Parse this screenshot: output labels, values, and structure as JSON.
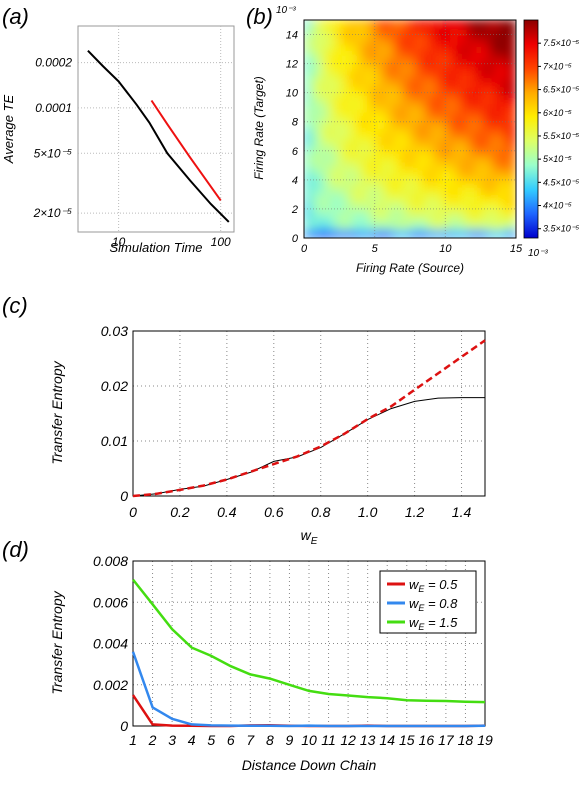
{
  "panels": {
    "a": {
      "letter": "(a)"
    },
    "b": {
      "letter": "(b)"
    },
    "c": {
      "letter": "(c)"
    },
    "d": {
      "letter": "(d)"
    }
  },
  "chart_data": [
    {
      "id": "a",
      "type": "line",
      "xlabel": "Simulation Time",
      "ylabel": "Average TE",
      "xscale": "log",
      "yscale": "log",
      "xlim": [
        4,
        135
      ],
      "ylim": [
        1.5e-05,
        0.00035
      ],
      "xticks": [
        {
          "v": 10,
          "label": "10"
        },
        {
          "v": 100,
          "label": "100"
        }
      ],
      "yticks": [
        {
          "v": 0.0002,
          "label": "0.0002"
        },
        {
          "v": 0.0001,
          "label": "0.0001"
        },
        {
          "v": 5e-05,
          "label": "5×10⁻⁵"
        },
        {
          "v": 2e-05,
          "label": "2×10⁻⁵"
        }
      ],
      "grid": true,
      "series": [
        {
          "color": "#000000",
          "x": [
            5,
            7,
            10,
            15,
            20,
            30,
            50,
            80,
            120
          ],
          "y": [
            0.00024,
            0.00019,
            0.00015,
            0.000105,
            8e-05,
            5e-05,
            3.3e-05,
            2.3e-05,
            1.75e-05
          ]
        },
        {
          "color": "#ee1111",
          "x": [
            21,
            30,
            50,
            100
          ],
          "y": [
            0.000112,
            7.8e-05,
            4.7e-05,
            2.43e-05
          ]
        }
      ]
    },
    {
      "id": "b",
      "type": "heatmap",
      "xlabel": "Firing Rate (Source)",
      "ylabel": "Firing Rate (Target)",
      "xlim": [
        0,
        0.015
      ],
      "ylim": [
        0,
        0.015
      ],
      "xticks": [
        {
          "v": 0,
          "label": "0"
        },
        {
          "v": 0.005,
          "label": "5"
        },
        {
          "v": 0.01,
          "label": "10"
        },
        {
          "v": 0.015,
          "label": "15"
        }
      ],
      "yticks": [
        {
          "v": 0,
          "label": "0"
        },
        {
          "v": 0.002,
          "label": "2"
        },
        {
          "v": 0.004,
          "label": "4"
        },
        {
          "v": 0.006,
          "label": "6"
        },
        {
          "v": 0.008,
          "label": "8"
        },
        {
          "v": 0.01,
          "label": "10"
        },
        {
          "v": 0.012,
          "label": "12"
        },
        {
          "v": 0.014,
          "label": "14"
        }
      ],
      "x_multiplier": "10⁻³",
      "y_multiplier": "10⁻³",
      "colorbar": {
        "min": 3.3e-05,
        "max": 8e-05,
        "ticks": [
          {
            "v": 3.5e-05,
            "label": "3.5×10⁻⁵"
          },
          {
            "v": 4e-05,
            "label": "4×10⁻⁵"
          },
          {
            "v": 4.5e-05,
            "label": "4.5×10⁻⁵"
          },
          {
            "v": 5e-05,
            "label": "5×10⁻⁵"
          },
          {
            "v": 5.5e-05,
            "label": "5.5×10⁻⁵"
          },
          {
            "v": 6e-05,
            "label": "6×10⁻⁵"
          },
          {
            "v": 6.5e-05,
            "label": "6.5×10⁻⁵"
          },
          {
            "v": 7e-05,
            "label": "7×10⁻⁵"
          },
          {
            "v": 7.5e-05,
            "label": "7.5×10⁻⁵"
          }
        ],
        "colors": [
          "#0000cc",
          "#1f66ff",
          "#33ccff",
          "#99ffcc",
          "#ddff66",
          "#ffee00",
          "#ffaa00",
          "#ff4400",
          "#ee0000",
          "#8b0000"
        ]
      },
      "grid": true
    },
    {
      "id": "c",
      "type": "line",
      "xlabel": "w",
      "xlabel_sub": "E",
      "ylabel": "Transfer Entropy",
      "xlim": [
        0,
        1.5
      ],
      "ylim": [
        0,
        0.03
      ],
      "xticks": [
        {
          "v": 0,
          "label": "0"
        },
        {
          "v": 0.2,
          "label": "0.2"
        },
        {
          "v": 0.4,
          "label": "0.4"
        },
        {
          "v": 0.6,
          "label": "0.6"
        },
        {
          "v": 0.8,
          "label": "0.8"
        },
        {
          "v": 1.0,
          "label": "1.0"
        },
        {
          "v": 1.2,
          "label": "1.2"
        },
        {
          "v": 1.4,
          "label": "1.4"
        }
      ],
      "yticks": [
        {
          "v": 0,
          "label": "0"
        },
        {
          "v": 0.01,
          "label": "0.01"
        },
        {
          "v": 0.02,
          "label": "0.02"
        },
        {
          "v": 0.03,
          "label": "0.03"
        }
      ],
      "grid": true,
      "series": [
        {
          "color": "#000000",
          "style": "solid",
          "x": [
            0,
            0.1,
            0.2,
            0.3,
            0.4,
            0.5,
            0.6,
            0.7,
            0.8,
            0.9,
            1.0,
            1.1,
            1.2,
            1.3,
            1.4,
            1.5
          ],
          "y": [
            0,
            0.0004,
            0.0012,
            0.0018,
            0.003,
            0.0043,
            0.0063,
            0.0071,
            0.0088,
            0.0113,
            0.0139,
            0.0159,
            0.0172,
            0.0178,
            0.0179,
            0.0179
          ]
        },
        {
          "color": "#dd1111",
          "style": "dashed",
          "x": [
            0,
            0.1,
            0.2,
            0.3,
            0.4,
            0.5,
            0.6,
            0.7,
            0.8,
            0.9,
            1.0,
            1.1,
            1.2,
            1.3,
            1.4,
            1.5
          ],
          "y": [
            0,
            0.0004,
            0.0011,
            0.0019,
            0.003,
            0.0044,
            0.0058,
            0.0072,
            0.009,
            0.0113,
            0.014,
            0.0163,
            0.0193,
            0.0223,
            0.0253,
            0.0283
          ]
        }
      ]
    },
    {
      "id": "d",
      "type": "line",
      "xlabel": "Distance Down Chain",
      "ylabel": "Transfer Entropy",
      "xlim": [
        1,
        19
      ],
      "ylim": [
        0,
        0.008
      ],
      "xticks": [
        {
          "v": 1,
          "label": "1"
        },
        {
          "v": 2,
          "label": "2"
        },
        {
          "v": 3,
          "label": "3"
        },
        {
          "v": 4,
          "label": "4"
        },
        {
          "v": 5,
          "label": "5"
        },
        {
          "v": 6,
          "label": "6"
        },
        {
          "v": 7,
          "label": "7"
        },
        {
          "v": 8,
          "label": "8"
        },
        {
          "v": 9,
          "label": "9"
        },
        {
          "v": 10,
          "label": "10"
        },
        {
          "v": 11,
          "label": "11"
        },
        {
          "v": 12,
          "label": "12"
        },
        {
          "v": 13,
          "label": "13"
        },
        {
          "v": 14,
          "label": "14"
        },
        {
          "v": 15,
          "label": "15"
        },
        {
          "v": 16,
          "label": "16"
        },
        {
          "v": 17,
          "label": "17"
        },
        {
          "v": 18,
          "label": "18"
        },
        {
          "v": 19,
          "label": "19"
        }
      ],
      "yticks": [
        {
          "v": 0,
          "label": "0"
        },
        {
          "v": 0.002,
          "label": "0.002"
        },
        {
          "v": 0.004,
          "label": "0.004"
        },
        {
          "v": 0.006,
          "label": "0.006"
        },
        {
          "v": 0.008,
          "label": "0.008"
        }
      ],
      "grid": true,
      "legend_position": "top-right",
      "series": [
        {
          "legend_prefix": "w",
          "legend_sub": "E",
          "legend_suffix": " = 0.5",
          "color": "#dd1111",
          "x": [
            1,
            2,
            3,
            4,
            5,
            6,
            7,
            8,
            9,
            10,
            11,
            12,
            13,
            14,
            15,
            16,
            17,
            18,
            19
          ],
          "y": [
            0.0015,
            8e-05,
            2e-05,
            1e-05,
            0,
            0,
            3e-05,
            4e-05,
            1e-05,
            0,
            0,
            0,
            2e-05,
            0,
            0,
            0,
            0,
            0,
            2e-05
          ]
        },
        {
          "legend_prefix": "w",
          "legend_sub": "E",
          "legend_suffix": " = 0.8",
          "color": "#3388ee",
          "x": [
            1,
            2,
            3,
            4,
            5,
            6,
            7,
            8,
            9,
            10,
            11,
            12,
            13,
            14,
            15,
            16,
            17,
            18,
            19
          ],
          "y": [
            0.0036,
            0.0009,
            0.00035,
            8e-05,
            3e-05,
            2e-05,
            1e-05,
            1e-05,
            0,
            2e-05,
            0,
            0,
            0,
            0,
            0,
            0,
            0,
            0,
            1e-05
          ]
        },
        {
          "legend_prefix": "w",
          "legend_sub": "E",
          "legend_suffix": " = 1.5",
          "color": "#44dd11",
          "x": [
            1,
            2,
            3,
            4,
            5,
            6,
            7,
            8,
            9,
            10,
            11,
            12,
            13,
            14,
            15,
            16,
            17,
            18,
            19
          ],
          "y": [
            0.0071,
            0.0059,
            0.0047,
            0.0038,
            0.0034,
            0.0029,
            0.0025,
            0.0023,
            0.002,
            0.0017,
            0.00155,
            0.00148,
            0.0014,
            0.00135,
            0.00125,
            0.00122,
            0.00121,
            0.00118,
            0.00116
          ]
        }
      ]
    }
  ]
}
